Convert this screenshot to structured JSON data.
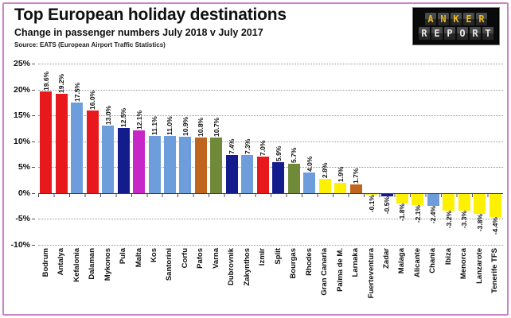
{
  "header": {
    "title": "Top European holiday destinations",
    "subtitle": "Change in passenger numbers July 2018 v July 2017",
    "source": "Source: EATS (European Airport Traffic Statistics)"
  },
  "logo": {
    "line1": "ANKER",
    "line2": "REPORT"
  },
  "chart_data": {
    "type": "bar",
    "title": "Top European holiday destinations",
    "subtitle": "Change in passenger numbers July 2018 v July 2017",
    "xlabel": "",
    "ylabel": "",
    "ylim": [
      -10,
      25
    ],
    "ytick_step": 5,
    "ytick_labels": [
      "25%",
      "20%",
      "15%",
      "10%",
      "5%",
      "0%",
      "-5%",
      "-10%"
    ],
    "grid": true,
    "legend": false,
    "categories": [
      "Bodrum",
      "Antalya",
      "Kefalonia",
      "Dalaman",
      "Mykonos",
      "Pula",
      "Malta",
      "Kos",
      "Santorini",
      "Corfu",
      "Pafos",
      "Varna",
      "Dubrovnik",
      "Zakynthos",
      "Izmir",
      "Split",
      "Bourgas",
      "Rhodes",
      "Gran Canaria",
      "Palma de M.",
      "Larnaka",
      "Fuerteventura",
      "Zadar",
      "Malaga",
      "Alicante",
      "Chania",
      "Ibiza",
      "Menorca",
      "Lanzarote",
      "Tenerife TFS"
    ],
    "values": [
      19.6,
      19.2,
      17.5,
      16.0,
      13.0,
      12.5,
      12.1,
      11.1,
      11.0,
      10.9,
      10.8,
      10.7,
      7.4,
      7.3,
      7.0,
      5.9,
      5.7,
      4.0,
      2.8,
      1.9,
      1.7,
      -0.1,
      -0.5,
      -1.8,
      -2.1,
      -2.4,
      -3.2,
      -3.3,
      -3.8,
      -4.4
    ],
    "value_labels": [
      "19.6%",
      "19.2%",
      "17.5%",
      "16.0%",
      "13.0%",
      "12.5%",
      "12.1%",
      "11.1%",
      "11.0%",
      "10.9%",
      "10.8%",
      "10.7%",
      "7.4%",
      "7.3%",
      "7.0%",
      "5.9%",
      "5.7%",
      "4.0%",
      "2.8%",
      "1.9%",
      "1.7%",
      "-0.1%",
      "-0.5%",
      "-1.8%",
      "-2.1%",
      "-2.4%",
      "-3.2%",
      "-3.3%",
      "-3.8%",
      "-4.4%"
    ],
    "bar_color_keys": [
      "red",
      "red",
      "blue",
      "red",
      "blue",
      "navy",
      "magenta",
      "blue",
      "blue",
      "blue",
      "orange",
      "olive",
      "navy",
      "blue",
      "red",
      "navy",
      "olive",
      "blue",
      "yellow",
      "yellow",
      "orange",
      "yellow",
      "navy",
      "yellow",
      "yellow",
      "blue",
      "yellow",
      "yellow",
      "yellow",
      "yellow"
    ],
    "colors": {
      "red": "#e8191c",
      "blue": "#6d9edb",
      "navy": "#141b8d",
      "magenta": "#c827c8",
      "orange": "#c0651d",
      "olive": "#6f8b3a",
      "yellow": "#fdf000"
    },
    "frame_color": "#c983c9",
    "logo_colors": {
      "line1": "#e8b920",
      "line2": "#e9e9e9",
      "bg": "#0a0a0a"
    }
  }
}
